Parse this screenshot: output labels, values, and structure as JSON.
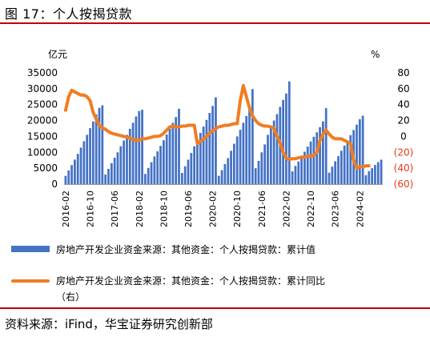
{
  "figure_title": "图 17：个人按揭贷款",
  "source": "资料来源：iFind，华宝证券研究创新部",
  "chart_data": {
    "type": "bar+line",
    "left_unit": "亿元",
    "right_unit": "%",
    "left_axis": {
      "min": 0,
      "max": 35000,
      "ticks": [
        "0",
        "5000",
        "10000",
        "15000",
        "20000",
        "25000",
        "30000",
        "35000"
      ]
    },
    "right_axis": {
      "min": -60,
      "max": 80,
      "ticks": [
        "(60)",
        "(40)",
        "(20)",
        "0",
        "20",
        "40",
        "60",
        "80"
      ],
      "negative_color": "#e8381b"
    },
    "x_tick_labels": [
      "2016-02",
      "2016-10",
      "2017-06",
      "2018-02",
      "2018-10",
      "2019-06",
      "2020-02",
      "2020-10",
      "2021-06",
      "2022-02",
      "2022-10",
      "2023-06",
      "2024-02"
    ],
    "x_start": "2016-02",
    "bar_color": "#4472c4",
    "line_color": "#f07d22",
    "series": [
      {
        "name": "房地产开发企业资金来源：其他资金：个人按揭贷款：累计值",
        "axis": "left",
        "kind": "bar",
        "values": [
          2600,
          4300,
          6000,
          7700,
          9500,
          11500,
          13500,
          15500,
          17600,
          19700,
          21900,
          24000,
          24800,
          3000,
          4800,
          6600,
          8300,
          10000,
          11900,
          13700,
          15500,
          17400,
          19300,
          21300,
          23000,
          23400,
          3200,
          5100,
          6900,
          8700,
          10300,
          12000,
          13800,
          15600,
          17400,
          19300,
          21100,
          23700,
          3500,
          5600,
          7700,
          9800,
          11900,
          14000,
          16100,
          18100,
          20200,
          22400,
          24600,
          27300,
          2600,
          4400,
          6300,
          8200,
          10500,
          12700,
          15000,
          17100,
          19300,
          21400,
          23600,
          29900,
          5000,
          7300,
          10000,
          12500,
          15500,
          17800,
          20000,
          22000,
          24300,
          26500,
          28500,
          32300,
          4000,
          5700,
          7100,
          8700,
          10200,
          11800,
          13400,
          14900,
          16300,
          17900,
          19700,
          23900,
          3600,
          5500,
          7200,
          8800,
          10500,
          12100,
          13700,
          15400,
          17000,
          18700,
          20400,
          21500,
          2800,
          4100,
          5000,
          6000,
          6900,
          7700
        ]
      },
      {
        "name": "房地产开发企业资金来源：其他资金：个人按揭贷款：累计同比（右）",
        "axis": "right",
        "kind": "line",
        "values": [
          33,
          50,
          58,
          56,
          54,
          52,
          52,
          50,
          45,
          30,
          22,
          14,
          11,
          9,
          6,
          4,
          3,
          2,
          1,
          0,
          -1,
          -2,
          -4,
          -5,
          -5,
          -3,
          -3,
          -2,
          -1,
          0,
          0,
          1,
          4,
          8,
          12,
          13,
          12,
          12,
          13,
          13,
          14,
          14,
          14,
          -9,
          -6,
          -3,
          0,
          4,
          7,
          10,
          12,
          13,
          14,
          14,
          15,
          16,
          16,
          45,
          64,
          50,
          36,
          26,
          20,
          16,
          14,
          13,
          13,
          12,
          10,
          0,
          -8,
          -20,
          -27,
          -29,
          -28,
          -28,
          -27,
          -26,
          -26,
          -25,
          -25,
          -24,
          -20,
          -5,
          3,
          8,
          3,
          -1,
          -3,
          -3,
          -3,
          -5,
          -7,
          -9,
          -30,
          -40,
          -38,
          -38,
          -37,
          -37
        ]
      }
    ]
  }
}
